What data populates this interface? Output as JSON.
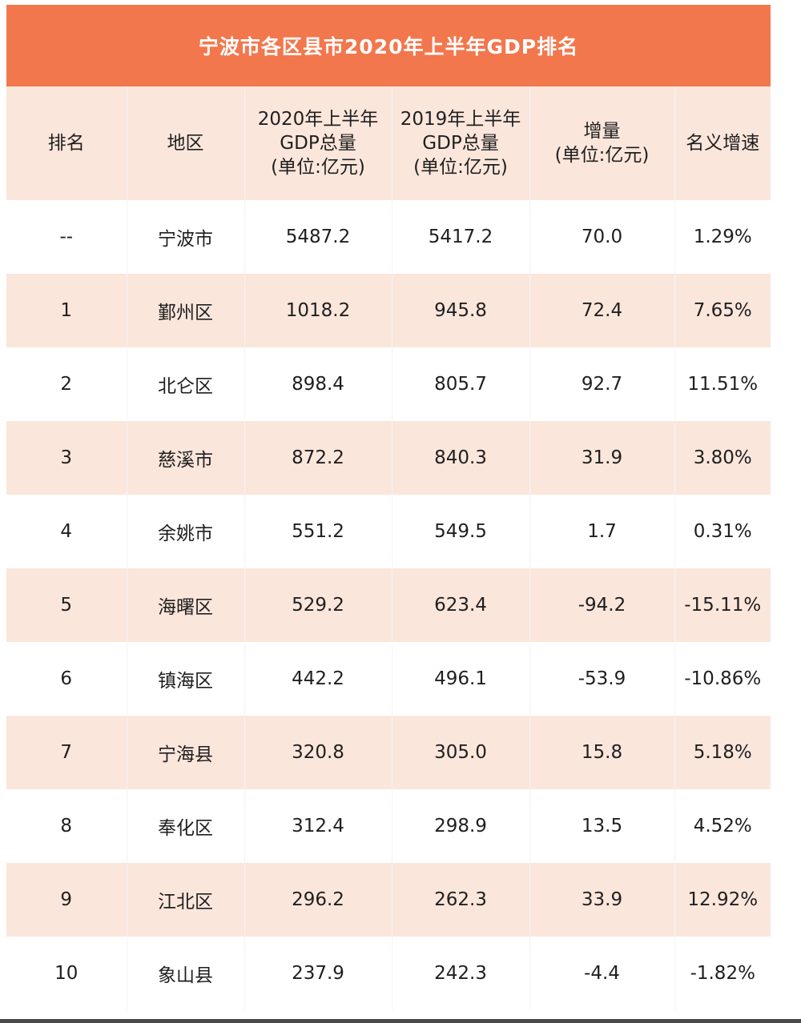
{
  "title": "宁波市各区县市2020年上半年GDP排名",
  "colors": {
    "header_bar": "#f2774d",
    "stripe": "#fbe6dc",
    "white": "#ffffff"
  },
  "table": {
    "headers": [
      [
        "排名"
      ],
      [
        "地区"
      ],
      [
        "2020年上半年",
        "GDP总量",
        "(单位:亿元)"
      ],
      [
        "2019年上半年",
        "GDP总量",
        "(单位:亿元)"
      ],
      [
        "增量",
        "(单位:亿元)"
      ],
      [
        "名义增速"
      ]
    ],
    "rows": [
      [
        "--",
        "宁波市",
        "5487.2",
        "5417.2",
        "70.0",
        "1.29%"
      ],
      [
        "1",
        "鄞州区",
        "1018.2",
        "945.8",
        "72.4",
        "7.65%"
      ],
      [
        "2",
        "北仑区",
        "898.4",
        "805.7",
        "92.7",
        "11.51%"
      ],
      [
        "3",
        "慈溪市",
        "872.2",
        "840.3",
        "31.9",
        "3.80%"
      ],
      [
        "4",
        "余姚市",
        "551.2",
        "549.5",
        "1.7",
        "0.31%"
      ],
      [
        "5",
        "海曙区",
        "529.2",
        "623.4",
        "-94.2",
        "-15.11%"
      ],
      [
        "6",
        "镇海区",
        "442.2",
        "496.1",
        "-53.9",
        "-10.86%"
      ],
      [
        "7",
        "宁海县",
        "320.8",
        "305.0",
        "15.8",
        "5.18%"
      ],
      [
        "8",
        "奉化区",
        "312.4",
        "298.9",
        "13.5",
        "4.52%"
      ],
      [
        "9",
        "江北区",
        "296.2",
        "262.3",
        "33.9",
        "12.92%"
      ],
      [
        "10",
        "象山县",
        "237.9",
        "242.3",
        "-4.4",
        "-1.82%"
      ]
    ]
  }
}
